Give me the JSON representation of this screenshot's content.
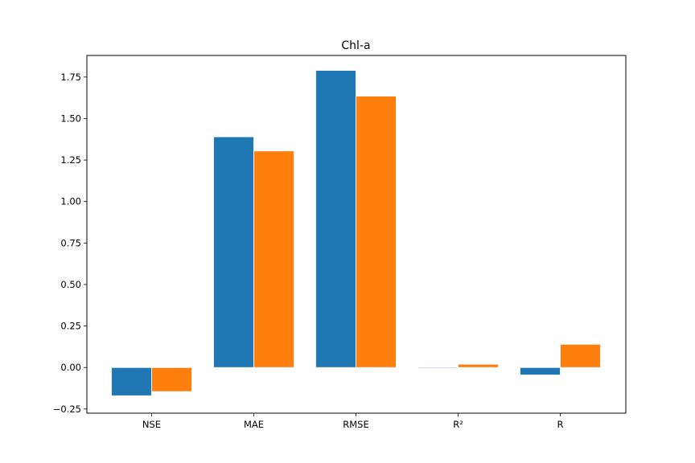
{
  "chart_data": {
    "type": "bar",
    "title": "Chl-a",
    "xlabel": "",
    "ylabel": "",
    "categories": [
      "NSE",
      "MAE",
      "RMSE",
      "R²",
      "R"
    ],
    "series": [
      {
        "values": [
          -0.17,
          1.39,
          1.79,
          -0.005,
          -0.045
        ],
        "color": "#1f77b4"
      },
      {
        "values": [
          -0.145,
          1.305,
          1.635,
          0.02,
          0.14
        ],
        "color": "#ff7f0e"
      }
    ],
    "ylim": [
      -0.275,
      1.88
    ],
    "yticks": [
      -0.25,
      0.0,
      0.25,
      0.5,
      0.75,
      1.0,
      1.25,
      1.5,
      1.75
    ],
    "ytick_labels": [
      "−0.25",
      "0.00",
      "0.25",
      "0.50",
      "0.75",
      "1.00",
      "1.25",
      "1.50",
      "1.75"
    ],
    "grid": false,
    "legend": "none"
  }
}
